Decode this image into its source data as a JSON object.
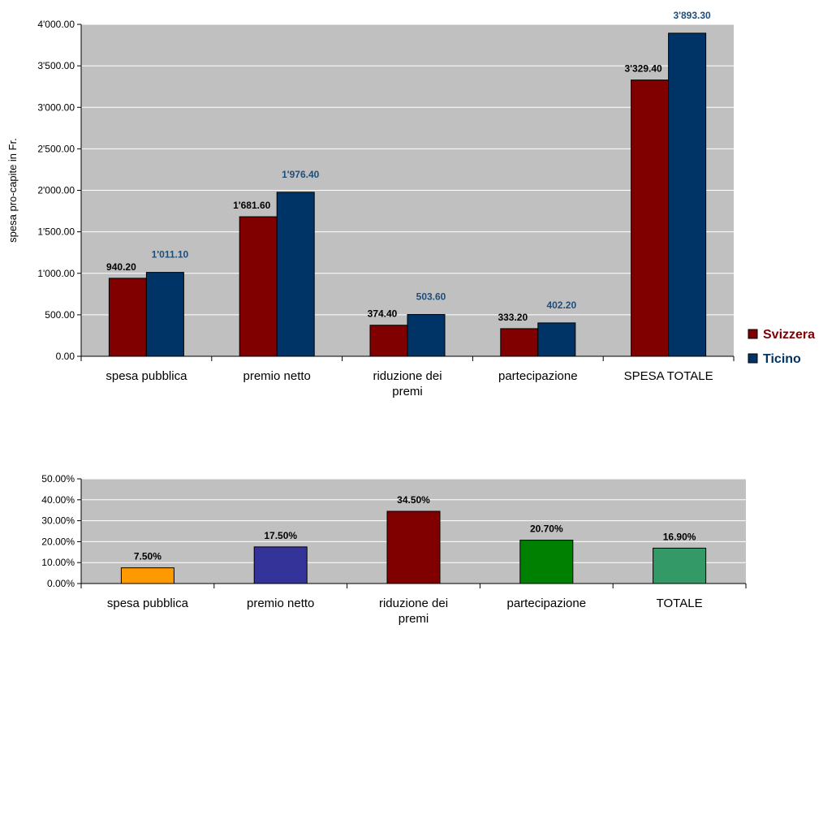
{
  "chart_data": [
    {
      "type": "bar",
      "xlabel": "",
      "ylabel": "spesa pro-capite in Fr.",
      "ylim": [
        0,
        4000
      ],
      "yticks": [
        "0.00",
        "500.00",
        "1'000.00",
        "1'500.00",
        "2'000.00",
        "2'500.00",
        "3'000.00",
        "3'500.00",
        "4'000.00"
      ],
      "categories": [
        [
          "spesa pubblica"
        ],
        [
          "premio netto"
        ],
        [
          "riduzione dei",
          "premi"
        ],
        [
          "partecipazione"
        ],
        [
          "SPESA TOTALE"
        ]
      ],
      "series": [
        {
          "name": "Svizzera",
          "color": "#800000",
          "label_color": "#000000",
          "values": [
            940.2,
            1681.6,
            374.4,
            333.2,
            3329.4
          ],
          "labels": [
            "940.20",
            "1'681.60",
            "374.40",
            "333.20",
            "3'329.40"
          ]
        },
        {
          "name": "Ticino",
          "color": "#003366",
          "label_color": "#1F4E79",
          "values": [
            1011.1,
            1976.4,
            503.6,
            402.2,
            3893.3
          ],
          "labels": [
            "1'011.10",
            "1'976.40",
            "503.60",
            "402.20",
            "3'893.30"
          ]
        }
      ],
      "grid": true,
      "plot_background": "#C0C0C0",
      "legend": "right"
    },
    {
      "type": "bar",
      "xlabel": "",
      "ylabel": "",
      "ylim": [
        0,
        0.5
      ],
      "yticks": [
        "0.00%",
        "10.00%",
        "20.00%",
        "30.00%",
        "40.00%",
        "50.00%"
      ],
      "categories": [
        [
          "spesa pubblica"
        ],
        [
          "premio netto"
        ],
        [
          "riduzione dei",
          "premi"
        ],
        [
          "partecipazione"
        ],
        [
          "TOTALE"
        ]
      ],
      "values": [
        0.075,
        0.175,
        0.345,
        0.207,
        0.169
      ],
      "labels": [
        "7.50%",
        "17.50%",
        "34.50%",
        "20.70%",
        "16.90%"
      ],
      "colors": [
        "#FF9900",
        "#333399",
        "#800000",
        "#008000",
        "#339966"
      ],
      "grid": true,
      "plot_background": "#C0C0C0"
    }
  ]
}
